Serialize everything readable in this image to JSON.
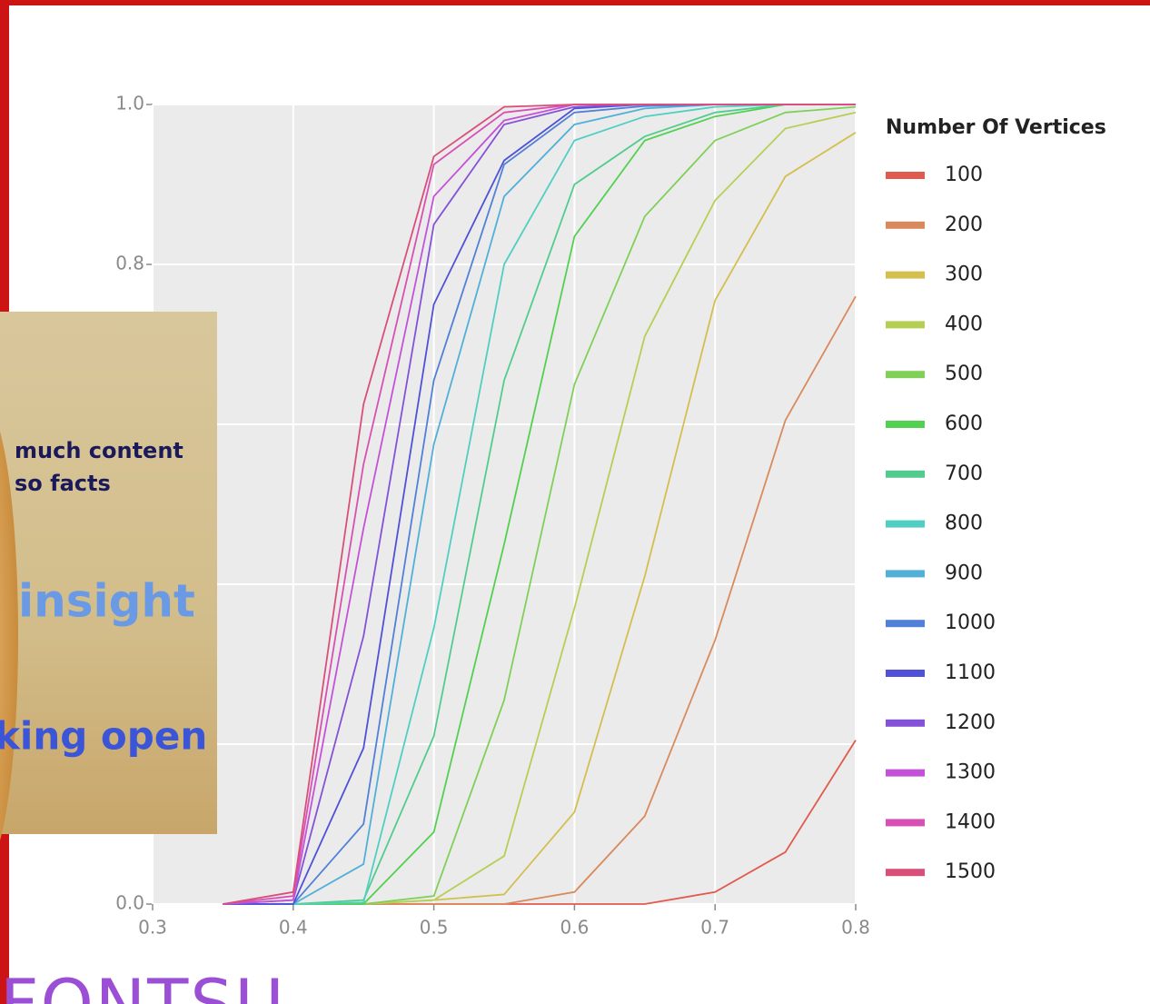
{
  "chart_data": {
    "type": "line",
    "x": [
      0.35,
      0.4,
      0.45,
      0.5,
      0.55,
      0.6,
      0.65,
      0.7,
      0.75,
      0.8
    ],
    "xlim": [
      0.3,
      0.8
    ],
    "xticks": [
      0.3,
      0.4,
      0.5,
      0.6,
      0.7,
      0.8
    ],
    "ylim": [
      0,
      1
    ],
    "yticks": [
      {
        "value": 0,
        "label": "0.0"
      },
      0.2,
      0.4,
      0.6,
      0.8,
      {
        "value": 1,
        "label": "1.0"
      }
    ],
    "grid": true,
    "legend_title": "Number Of Vertices",
    "legend_position": "right",
    "series": [
      {
        "name": "100",
        "color": "#e05a4e",
        "values": [
          0,
          0,
          0,
          0,
          0,
          0,
          0,
          0.015,
          0.065,
          0.205
        ]
      },
      {
        "name": "200",
        "color": "#d98a5c",
        "values": [
          0,
          0,
          0,
          0,
          0,
          0.015,
          0.11,
          0.33,
          0.605,
          0.76
        ]
      },
      {
        "name": "300",
        "color": "#d4bf4e",
        "values": [
          0,
          0,
          0,
          0.005,
          0.012,
          0.115,
          0.41,
          0.755,
          0.91,
          0.965
        ]
      },
      {
        "name": "400",
        "color": "#b5cf55",
        "values": [
          0,
          0,
          0,
          0.005,
          0.06,
          0.37,
          0.71,
          0.88,
          0.97,
          0.99
        ]
      },
      {
        "name": "500",
        "color": "#80d058",
        "values": [
          0,
          0,
          0,
          0.01,
          0.255,
          0.65,
          0.86,
          0.955,
          0.99,
          0.997
        ]
      },
      {
        "name": "600",
        "color": "#52d050",
        "values": [
          0,
          0,
          0,
          0.09,
          0.45,
          0.835,
          0.955,
          0.985,
          1,
          1
        ]
      },
      {
        "name": "700",
        "color": "#52cc8e",
        "values": [
          0,
          0,
          0.005,
          0.21,
          0.655,
          0.9,
          0.96,
          0.99,
          1,
          1
        ]
      },
      {
        "name": "800",
        "color": "#4fcfc2",
        "values": [
          0,
          0,
          0.002,
          0.345,
          0.8,
          0.955,
          0.985,
          0.997,
          1,
          1
        ]
      },
      {
        "name": "900",
        "color": "#50b0d8",
        "values": [
          0,
          0,
          0.05,
          0.575,
          0.885,
          0.975,
          0.995,
          1,
          1,
          1
        ]
      },
      {
        "name": "1000",
        "color": "#5080d8",
        "values": [
          0,
          0,
          0.1,
          0.655,
          0.925,
          0.99,
          0.998,
          1,
          1,
          1
        ]
      },
      {
        "name": "1100",
        "color": "#5050d8",
        "values": [
          0,
          0,
          0.195,
          0.75,
          0.93,
          0.995,
          1,
          1,
          1,
          1
        ]
      },
      {
        "name": "1200",
        "color": "#8452d8",
        "values": [
          0,
          0.005,
          0.335,
          0.85,
          0.975,
          0.997,
          1,
          1,
          1,
          1
        ]
      },
      {
        "name": "1300",
        "color": "#c452d8",
        "values": [
          0,
          0.005,
          0.47,
          0.885,
          0.98,
          1,
          1,
          1,
          1,
          1
        ]
      },
      {
        "name": "1400",
        "color": "#d850b4",
        "values": [
          0,
          0.01,
          0.55,
          0.925,
          0.99,
          1,
          1,
          1,
          1,
          1
        ]
      },
      {
        "name": "1500",
        "color": "#d8507a",
        "values": [
          0,
          0.015,
          0.625,
          0.935,
          0.997,
          1,
          1,
          1,
          1,
          1
        ]
      }
    ]
  },
  "overlay": {
    "captions": [
      "much content",
      "so facts",
      "insight",
      "king open"
    ]
  },
  "footer_text": "FONTSU"
}
